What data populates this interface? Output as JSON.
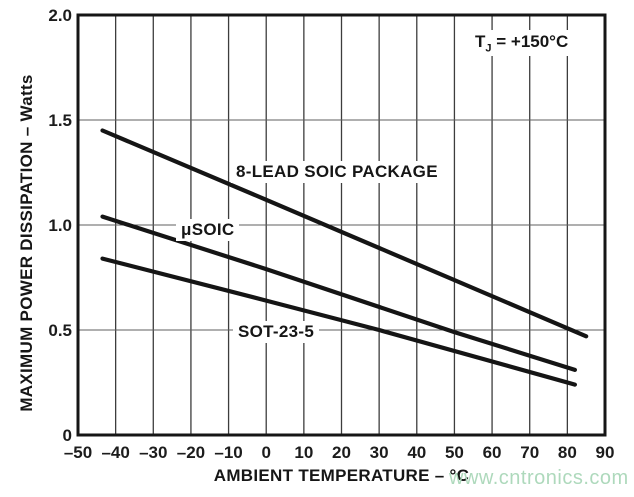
{
  "watermark": {
    "text": "www.cntronics.com"
  },
  "colors": {
    "line": "#151515",
    "grid_vertical": "#3d3d3d",
    "grid_horizontal": "#5f5f5f",
    "frame": "#161616",
    "text": "#1a1a1a",
    "watermark": "#aed9bc",
    "background": "#ffffff"
  },
  "chart_data": {
    "type": "line",
    "title": "",
    "xlabel": "AMBIENT TEMPERATURE – °C",
    "ylabel": "MAXIMUM POWER DISSIPATION – Watts",
    "xlim": [
      -50,
      90
    ],
    "ylim": [
      0,
      2.0
    ],
    "grid": true,
    "legend_position": "inline-labels",
    "annotation": {
      "base": "T",
      "sub": "J",
      "rest": " = +150°C"
    },
    "x_ticks": [
      -50,
      -40,
      -30,
      -20,
      -10,
      0,
      10,
      20,
      30,
      40,
      50,
      60,
      70,
      80,
      90
    ],
    "x_tick_labels": [
      "–50",
      "–40",
      "–30",
      "–20",
      "–10",
      "0",
      "10",
      "20",
      "30",
      "40",
      "50",
      "60",
      "70",
      "80",
      "90"
    ],
    "y_ticks": [
      0,
      0.5,
      1.0,
      1.5,
      2.0
    ],
    "y_tick_labels": [
      "0",
      "0.5",
      "1.0",
      "1.5",
      "2.0"
    ],
    "series": [
      {
        "name": "8-LEAD SOIC PACKAGE",
        "points": [
          [
            -43.5,
            1.45
          ],
          [
            0,
            1.12
          ],
          [
            85,
            0.47
          ]
        ]
      },
      {
        "name": "μSOIC",
        "points": [
          [
            -43.5,
            1.04
          ],
          [
            0,
            0.79
          ],
          [
            50,
            0.49
          ],
          [
            82,
            0.31
          ]
        ]
      },
      {
        "name": "SOT-23-5",
        "points": [
          [
            -43.5,
            0.84
          ],
          [
            0,
            0.64
          ],
          [
            30,
            0.5
          ],
          [
            82,
            0.24
          ]
        ]
      }
    ]
  }
}
